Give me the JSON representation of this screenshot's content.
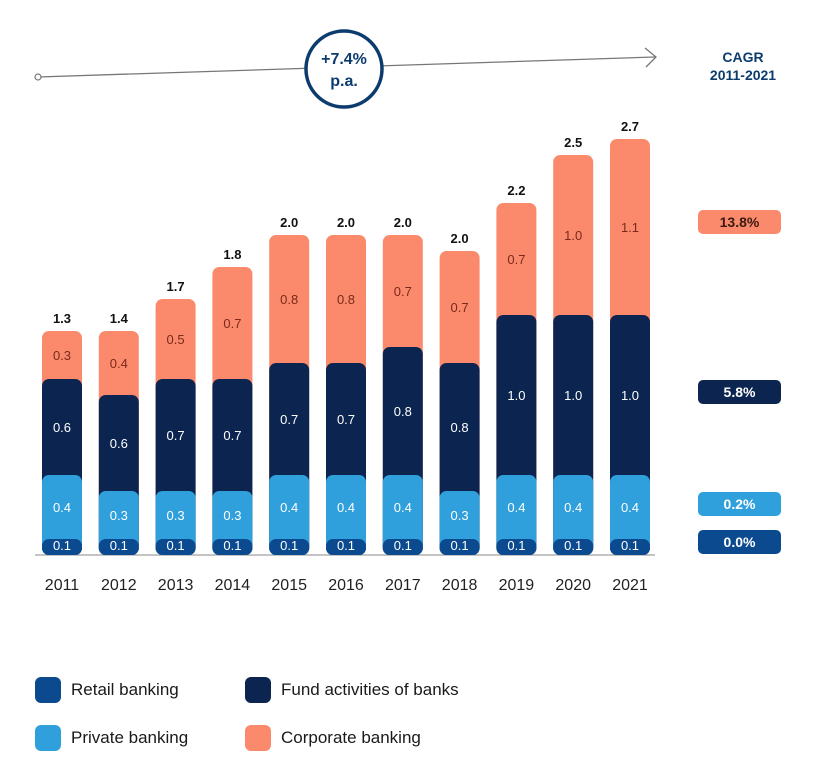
{
  "chart_data": {
    "type": "bar",
    "stacked": true,
    "categories": [
      "2011",
      "2012",
      "2013",
      "2014",
      "2015",
      "2016",
      "2017",
      "2018",
      "2019",
      "2020",
      "2021"
    ],
    "series": [
      {
        "name": "Retail banking",
        "color": "#0b4a8f",
        "values": [
          0.1,
          0.1,
          0.1,
          0.1,
          0.1,
          0.1,
          0.1,
          0.1,
          0.1,
          0.1,
          0.1
        ]
      },
      {
        "name": "Private banking",
        "color": "#2fa0dc",
        "values": [
          0.4,
          0.3,
          0.3,
          0.3,
          0.4,
          0.4,
          0.4,
          0.3,
          0.4,
          0.4,
          0.4
        ]
      },
      {
        "name": "Fund activities of banks",
        "color": "#0c2550",
        "values": [
          0.6,
          0.6,
          0.7,
          0.7,
          0.7,
          0.7,
          0.8,
          0.8,
          1.0,
          1.0,
          1.0
        ]
      },
      {
        "name": "Corporate banking",
        "color": "#fb8a6c",
        "values": [
          0.3,
          0.4,
          0.5,
          0.7,
          0.8,
          0.8,
          0.7,
          0.7,
          0.7,
          1.0,
          1.1
        ]
      }
    ],
    "totals": [
      "1.3",
      "1.4",
      "1.7",
      "1.8",
      "2.0",
      "2.0",
      "2.0",
      "2.0",
      "2.2",
      "2.5",
      "2.7"
    ],
    "growth_label": [
      "+7.4%",
      "p.a."
    ],
    "cagr_title": [
      "CAGR",
      "2011-2021"
    ],
    "cagr": [
      {
        "series": "Corporate banking",
        "value": "13.8%"
      },
      {
        "series": "Fund activities of banks",
        "value": "5.8%"
      },
      {
        "series": "Private banking",
        "value": "0.2%"
      },
      {
        "series": "Retail banking",
        "value": "0.0%"
      }
    ],
    "legend_order": [
      0,
      2,
      1,
      3
    ]
  }
}
